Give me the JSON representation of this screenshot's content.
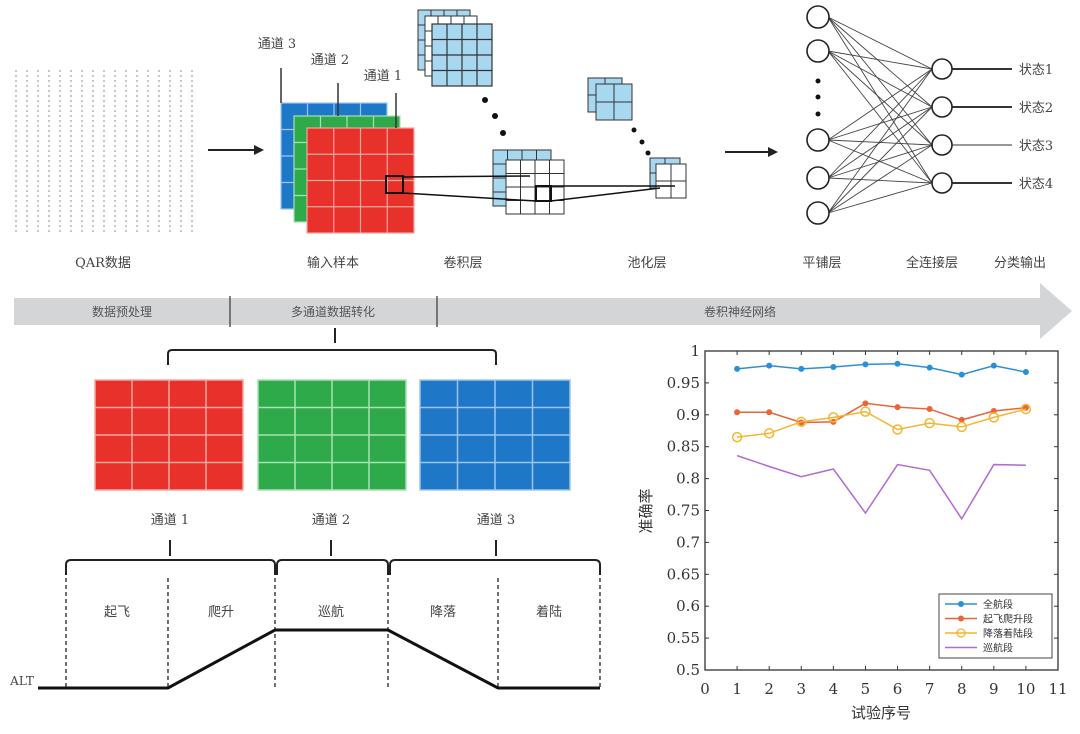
{
  "top": {
    "channel_labels": [
      "通道 3",
      "通道 2",
      "通道 1"
    ],
    "stage_labels": {
      "qar": "QAR数据",
      "input": "输入样本",
      "conv": "卷积层",
      "pool": "池化层",
      "flatten": "平铺层",
      "fc": "全连接层",
      "output": "分类输出"
    },
    "states": [
      "状态1",
      "状态2",
      "状态3",
      "状态4"
    ]
  },
  "band": {
    "segments": [
      "数据预处理",
      "多通道数据转化",
      "卷积神经网络"
    ],
    "color": "#d3d5d7"
  },
  "channels": [
    {
      "label": "通道 1",
      "color": "#e8312a"
    },
    {
      "label": "通道 2",
      "color": "#2eaa4a"
    },
    {
      "label": "通道 3",
      "color": "#1f77c8"
    }
  ],
  "phases": {
    "labels": [
      "起飞",
      "爬升",
      "巡航",
      "降落",
      "着陆"
    ],
    "axis_label": "ALT"
  },
  "chart_data": {
    "type": "line",
    "xlabel": "试验序号",
    "ylabel": "准确率",
    "xlim": [
      0,
      11
    ],
    "ylim": [
      0.5,
      1
    ],
    "xticks": [
      "0",
      "1",
      "2",
      "3",
      "4",
      "5",
      "6",
      "7",
      "8",
      "9",
      "10",
      "11"
    ],
    "yticks": [
      "0.5",
      "0.55",
      "0.6",
      "0.65",
      "0.7",
      "0.75",
      "0.8",
      "0.85",
      "0.9",
      "0.95",
      "1"
    ],
    "x": [
      1,
      2,
      3,
      4,
      5,
      6,
      7,
      8,
      9,
      10
    ],
    "legend_position": "bottom-right",
    "series": [
      {
        "name": "全航段",
        "color": "#2b8fd6",
        "marker": "dot",
        "values": [
          0.972,
          0.977,
          0.972,
          0.975,
          0.979,
          0.98,
          0.974,
          0.963,
          0.977,
          0.967
        ]
      },
      {
        "name": "起飞爬升段",
        "color": "#e8643a",
        "marker": "dot",
        "values": [
          0.904,
          0.904,
          0.888,
          0.889,
          0.918,
          0.912,
          0.909,
          0.892,
          0.906,
          0.911
        ]
      },
      {
        "name": "降落着陆段",
        "color": "#f2b632",
        "marker": "circle",
        "values": [
          0.865,
          0.871,
          0.889,
          0.896,
          0.905,
          0.877,
          0.887,
          0.881,
          0.896,
          0.909
        ]
      },
      {
        "name": "巡航段",
        "color": "#b36ad1",
        "marker": "none",
        "values": [
          0.836,
          0.819,
          0.803,
          0.815,
          0.746,
          0.822,
          0.813,
          0.737,
          0.822,
          0.821
        ]
      }
    ]
  }
}
